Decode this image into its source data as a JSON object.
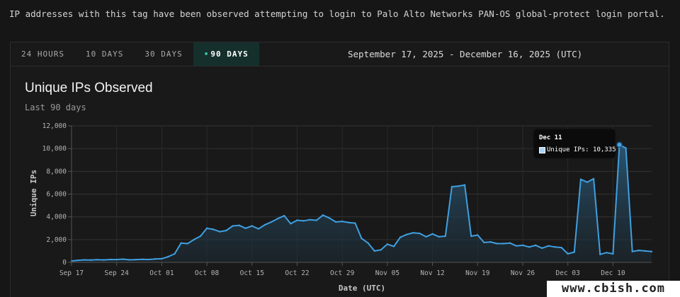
{
  "description": "IP addresses with this tag have been observed attempting to login to Palo Alto Networks PAN-OS global-protect login portal.",
  "range_tabs": [
    {
      "label": "24 HOURS",
      "active": false
    },
    {
      "label": "10 DAYS",
      "active": false
    },
    {
      "label": "30 DAYS",
      "active": false
    },
    {
      "label": "90 DAYS",
      "active": true
    }
  ],
  "date_range": "September 17, 2025 - December 16, 2025 (UTC)",
  "colors": {
    "accent": "#35c9a6",
    "line": "#3f9fe0",
    "area_top": "#2c5d7e",
    "active_tab_bg": "#15302c"
  },
  "tooltip": {
    "title": "Dec 11",
    "series_label": "Unique IPs: 10,335"
  },
  "watermark": "www.cbish.com",
  "chart_data": {
    "type": "area",
    "title": "Unique IPs Observed",
    "subtitle": "Last 90 days",
    "xlabel": "Date (UTC)",
    "ylabel": "Unique IPs",
    "ylim": [
      0,
      12000
    ],
    "yticks": [
      0,
      2000,
      4000,
      6000,
      8000,
      10000,
      12000
    ],
    "ytick_labels": [
      "0",
      "2,000",
      "4,000",
      "6,000",
      "8,000",
      "10,000",
      "12,000"
    ],
    "x_start": "Sep 17",
    "x_end": "Dec 16",
    "xtick_labels": [
      "Sep 17",
      "Sep 24",
      "Oct 01",
      "Oct 08",
      "Oct 15",
      "Oct 22",
      "Oct 29",
      "Nov 05",
      "Nov 12",
      "Nov 19",
      "Nov 26",
      "Dec 03",
      "Dec 10"
    ],
    "grid": true,
    "highlight_index": 85,
    "series": [
      {
        "name": "Unique IPs",
        "values": [
          120,
          180,
          220,
          200,
          230,
          210,
          250,
          240,
          280,
          220,
          240,
          260,
          250,
          300,
          320,
          500,
          750,
          1700,
          1650,
          2000,
          2300,
          3000,
          2900,
          2700,
          2800,
          3200,
          3250,
          3000,
          3200,
          2950,
          3300,
          3550,
          3850,
          4100,
          3400,
          3700,
          3650,
          3750,
          3700,
          4150,
          3900,
          3550,
          3600,
          3500,
          3450,
          2100,
          1700,
          1000,
          1100,
          1600,
          1400,
          2200,
          2450,
          2600,
          2550,
          2250,
          2500,
          2250,
          2300,
          6650,
          6700,
          6800,
          2300,
          2400,
          1750,
          1800,
          1650,
          1650,
          1700,
          1450,
          1500,
          1350,
          1500,
          1250,
          1450,
          1350,
          1300,
          750,
          900,
          7300,
          7050,
          7350,
          700,
          850,
          750,
          10335,
          10050,
          950,
          1050,
          1000,
          950
        ]
      }
    ]
  }
}
